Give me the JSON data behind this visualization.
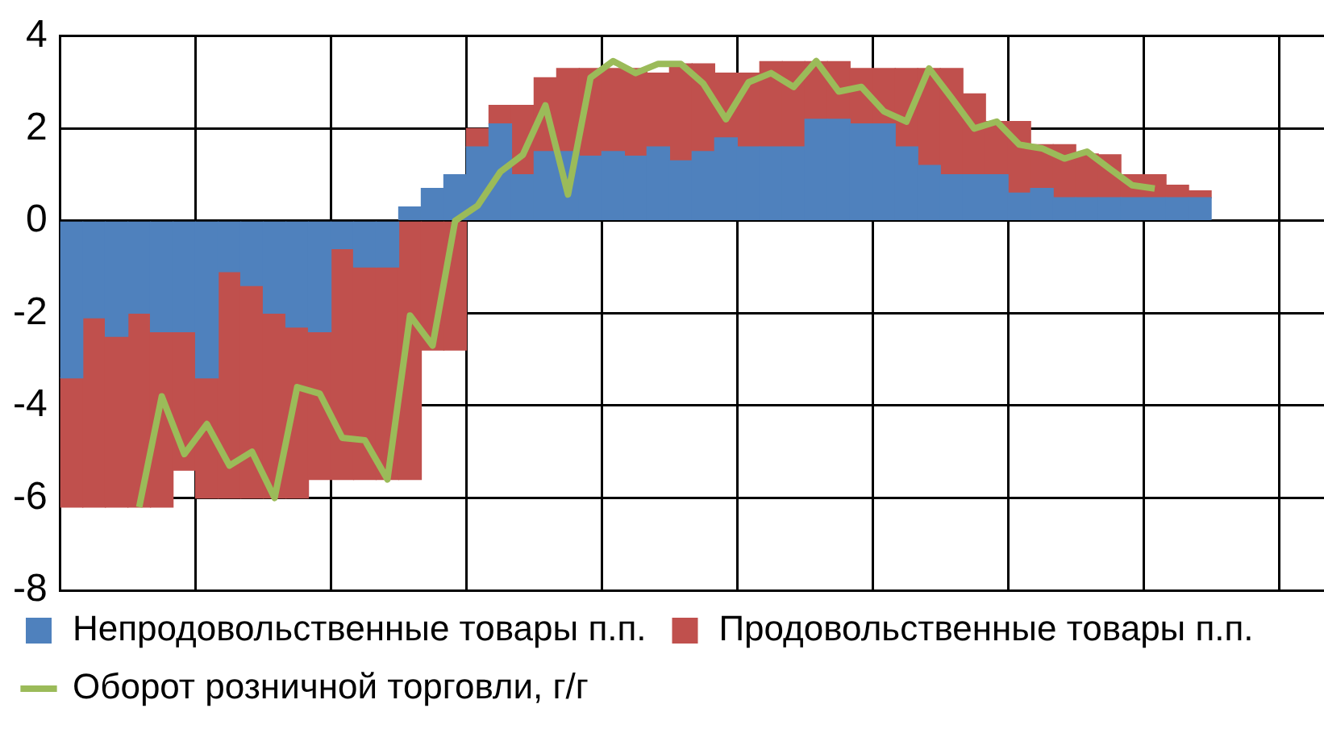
{
  "chart_data": {
    "type": "bar",
    "stacked": true,
    "categories": [
      null,
      null,
      null,
      null,
      null,
      null,
      null,
      null,
      null,
      null,
      null,
      null,
      null,
      null,
      null,
      null,
      null,
      null,
      null,
      null,
      null,
      null,
      null,
      null,
      null,
      null,
      null,
      null,
      null,
      null,
      null,
      null,
      null,
      null,
      null,
      null,
      null,
      null,
      null,
      null,
      null,
      null,
      null,
      null,
      null,
      null,
      null,
      null,
      null,
      null,
      null,
      null,
      null,
      null,
      null,
      null
    ],
    "ylim": [
      -8,
      4
    ],
    "yticks": [
      -8,
      -6,
      -4,
      -2,
      0,
      2,
      4
    ],
    "grid": true,
    "legend": "bottom",
    "tick_labels": "y",
    "series": [
      {
        "name": "Непродовольственные товары п.п.",
        "color": "#4f81bd",
        "values": [
          -3.4,
          -2.1,
          -2.5,
          -2.0,
          -2.4,
          -2.4,
          -3.4,
          -1.1,
          -1.4,
          -2.0,
          -2.3,
          -2.4,
          -0.6,
          -1.0,
          -1.0,
          0.3,
          0.7,
          1.0,
          1.6,
          2.1,
          1.0,
          1.5,
          1.5,
          1.4,
          1.5,
          1.4,
          1.6,
          1.3,
          1.5,
          1.8,
          1.6,
          1.6,
          1.6,
          2.2,
          2.2,
          2.1,
          2.1,
          1.6,
          1.2,
          1.0,
          1.0,
          1.0,
          0.6,
          0.7,
          0.5,
          0.5,
          0.5,
          0.5,
          0.5,
          0.5,
          0.5,
          null,
          null,
          null,
          null,
          null
        ]
      },
      {
        "name": "Продовольственные товары п.п.",
        "color": "#c0504d",
        "values": [
          -2.8,
          -4.1,
          -3.7,
          -4.2,
          -3.8,
          -3.0,
          -2.6,
          -4.9,
          -4.6,
          -4.0,
          -3.7,
          -3.2,
          -5.0,
          -4.6,
          -4.6,
          -5.6,
          -2.8,
          -2.8,
          0.4,
          0.4,
          1.5,
          1.6,
          1.8,
          1.9,
          1.8,
          1.9,
          1.6,
          2.1,
          1.9,
          1.4,
          1.6,
          1.85,
          1.85,
          1.25,
          1.25,
          1.2,
          1.2,
          1.7,
          2.1,
          2.3,
          1.75,
          1.15,
          1.55,
          0.95,
          1.15,
          0.95,
          0.93,
          0.5,
          0.5,
          0.27,
          0.15,
          null,
          null,
          null,
          null,
          null
        ]
      },
      {
        "name": "Оборот розничной торговли, г/г",
        "type": "line",
        "color": "#9bbb59",
        "marker": "none",
        "values": [
          null,
          null,
          null,
          -6.2,
          -3.8,
          -5.05,
          -4.4,
          -5.3,
          -5.0,
          -6.0,
          -3.6,
          -3.74,
          -4.7,
          -4.75,
          -5.6,
          -2.05,
          -2.7,
          0,
          0.33,
          1.06,
          1.43,
          2.5,
          0.57,
          3.1,
          3.46,
          3.2,
          3.4,
          3.4,
          2.97,
          2.2,
          3.0,
          3.2,
          2.9,
          3.46,
          2.8,
          2.9,
          2.37,
          2.15,
          3.3,
          2.66,
          2.0,
          2.15,
          1.65,
          1.57,
          1.35,
          1.5,
          1.13,
          0.77,
          0.7,
          null,
          null,
          null,
          null,
          null,
          null,
          null
        ]
      }
    ]
  }
}
